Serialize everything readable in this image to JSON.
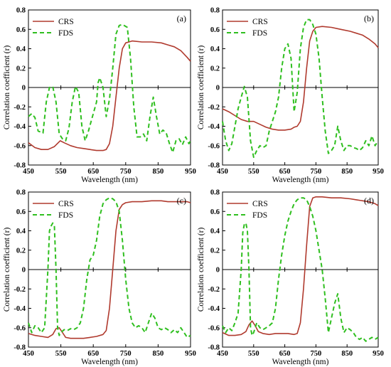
{
  "colors": {
    "crs": "#b03a2e",
    "fds": "#2fbf1f",
    "axis": "#000000"
  },
  "chart_data": [
    {
      "type": "line",
      "panel": "(a)",
      "xlabel": "Wavelength (nm)",
      "ylabel": "Correlation coefficient (r)",
      "xlim": [
        450,
        950
      ],
      "ylim": [
        -0.8,
        0.8
      ],
      "xticks": [
        "450",
        "550",
        "650",
        "750",
        "850",
        "950"
      ],
      "yticks": [
        "-0.8",
        "-0.6",
        "-0.4",
        "-0.2",
        "0",
        "0.2",
        "0.4",
        "0.6",
        "0.8"
      ],
      "legend": "top-left",
      "series": [
        {
          "name": "CRS",
          "style": "solid",
          "x": [
            450,
            470,
            490,
            510,
            530,
            548,
            560,
            580,
            600,
            620,
            640,
            660,
            680,
            690,
            700,
            710,
            720,
            730,
            740,
            750,
            770,
            800,
            830,
            860,
            880,
            900,
            920,
            940,
            950
          ],
          "y": [
            -0.57,
            -0.62,
            -0.64,
            -0.64,
            -0.61,
            -0.55,
            -0.57,
            -0.6,
            -0.62,
            -0.63,
            -0.64,
            -0.65,
            -0.65,
            -0.64,
            -0.58,
            -0.4,
            -0.1,
            0.2,
            0.4,
            0.46,
            0.48,
            0.47,
            0.47,
            0.46,
            0.44,
            0.42,
            0.38,
            0.31,
            0.27
          ]
        },
        {
          "name": "FDS",
          "style": "dashed",
          "x": [
            450,
            460,
            470,
            480,
            495,
            505,
            515,
            525,
            535,
            545,
            555,
            565,
            575,
            585,
            595,
            605,
            615,
            625,
            635,
            645,
            660,
            665,
            670,
            680,
            690,
            700,
            710,
            720,
            730,
            740,
            755,
            765,
            775,
            785,
            795,
            805,
            815,
            825,
            835,
            845,
            855,
            865,
            875,
            885,
            895,
            905,
            915,
            925,
            935,
            945,
            950
          ],
          "y": [
            -0.3,
            -0.27,
            -0.31,
            -0.45,
            -0.47,
            -0.15,
            0.0,
            0.01,
            -0.15,
            -0.48,
            -0.53,
            -0.55,
            -0.42,
            -0.15,
            0.01,
            -0.05,
            -0.4,
            -0.55,
            -0.45,
            -0.33,
            -0.15,
            0.05,
            0.1,
            0.0,
            -0.3,
            -0.12,
            0.2,
            0.55,
            0.64,
            0.65,
            0.62,
            0.3,
            -0.2,
            -0.51,
            -0.51,
            -0.48,
            -0.55,
            -0.3,
            -0.1,
            -0.3,
            -0.48,
            -0.44,
            -0.47,
            -0.58,
            -0.67,
            -0.55,
            -0.53,
            -0.59,
            -0.51,
            -0.58,
            -0.55
          ]
        }
      ]
    },
    {
      "type": "line",
      "panel": "(b)",
      "xlabel": "Wavelength (nm)",
      "ylabel": "Correlation coefficient (r)",
      "xlim": [
        450,
        950
      ],
      "ylim": [
        -0.8,
        0.8
      ],
      "xticks": [
        "450",
        "550",
        "650",
        "750",
        "850",
        "950"
      ],
      "yticks": [
        "-0.8",
        "-0.6",
        "-0.4",
        "-0.2",
        "0",
        "0.2",
        "0.4",
        "0.6",
        "0.8"
      ],
      "legend": "top-left",
      "series": [
        {
          "name": "CRS",
          "style": "solid",
          "x": [
            450,
            470,
            490,
            510,
            530,
            550,
            570,
            590,
            610,
            630,
            650,
            670,
            680,
            690,
            700,
            710,
            720,
            730,
            740,
            750,
            770,
            800,
            830,
            860,
            880,
            900,
            920,
            940,
            950
          ],
          "y": [
            -0.22,
            -0.25,
            -0.29,
            -0.33,
            -0.35,
            -0.35,
            -0.38,
            -0.41,
            -0.43,
            -0.44,
            -0.44,
            -0.43,
            -0.41,
            -0.4,
            -0.35,
            -0.15,
            0.2,
            0.48,
            0.58,
            0.62,
            0.63,
            0.62,
            0.6,
            0.58,
            0.56,
            0.54,
            0.5,
            0.45,
            0.41
          ]
        },
        {
          "name": "FDS",
          "style": "dashed",
          "x": [
            450,
            460,
            470,
            480,
            490,
            500,
            510,
            520,
            530,
            540,
            550,
            560,
            570,
            580,
            590,
            600,
            610,
            620,
            630,
            640,
            650,
            660,
            670,
            680,
            690,
            700,
            710,
            720,
            730,
            740,
            750,
            760,
            770,
            780,
            790,
            800,
            810,
            820,
            830,
            840,
            850,
            860,
            870,
            880,
            890,
            900,
            910,
            920,
            930,
            940,
            950
          ],
          "y": [
            -0.35,
            -0.55,
            -0.65,
            -0.58,
            -0.4,
            -0.22,
            -0.1,
            0.01,
            -0.1,
            -0.55,
            -0.72,
            -0.65,
            -0.6,
            -0.62,
            -0.6,
            -0.45,
            -0.35,
            -0.25,
            -0.1,
            0.2,
            0.4,
            0.45,
            0.3,
            -0.25,
            -0.05,
            0.4,
            0.62,
            0.7,
            0.7,
            0.65,
            0.55,
            0.3,
            -0.1,
            -0.45,
            -0.68,
            -0.65,
            -0.6,
            -0.4,
            -0.55,
            -0.65,
            -0.6,
            -0.6,
            -0.62,
            -0.63,
            -0.65,
            -0.62,
            -0.55,
            -0.6,
            -0.5,
            -0.6,
            -0.55
          ]
        }
      ]
    },
    {
      "type": "line",
      "panel": "(c)",
      "xlabel": "Wavelength (nm)",
      "ylabel": "Correlation coefficient (r)",
      "xlim": [
        450,
        950
      ],
      "ylim": [
        -0.8,
        0.8
      ],
      "xticks": [
        "450",
        "550",
        "650",
        "750",
        "850",
        "950"
      ],
      "yticks": [
        "-0.8",
        "-0.6",
        "-0.4",
        "-0.2",
        "0",
        "0.2",
        "0.4",
        "0.6",
        "0.8"
      ],
      "legend": "top-left",
      "series": [
        {
          "name": "CRS",
          "style": "solid",
          "x": [
            450,
            470,
            490,
            510,
            525,
            535,
            545,
            555,
            565,
            580,
            600,
            620,
            640,
            660,
            680,
            690,
            700,
            710,
            720,
            730,
            740,
            750,
            770,
            800,
            830,
            860,
            880,
            900,
            920,
            940,
            950
          ],
          "y": [
            -0.66,
            -0.68,
            -0.69,
            -0.7,
            -0.67,
            -0.61,
            -0.6,
            -0.65,
            -0.7,
            -0.71,
            -0.71,
            -0.71,
            -0.7,
            -0.69,
            -0.67,
            -0.63,
            -0.4,
            0.0,
            0.4,
            0.62,
            0.67,
            0.69,
            0.7,
            0.7,
            0.71,
            0.71,
            0.7,
            0.7,
            0.7,
            0.7,
            0.69
          ]
        },
        {
          "name": "FDS",
          "style": "dashed",
          "x": [
            450,
            460,
            470,
            480,
            490,
            500,
            510,
            515,
            520,
            525,
            530,
            535,
            540,
            545,
            550,
            560,
            570,
            580,
            590,
            600,
            610,
            620,
            630,
            640,
            650,
            660,
            670,
            680,
            690,
            700,
            710,
            720,
            730,
            740,
            750,
            760,
            770,
            780,
            790,
            800,
            810,
            820,
            830,
            840,
            850,
            860,
            870,
            880,
            890,
            900,
            910,
            920,
            930,
            940,
            950
          ],
          "y": [
            -0.55,
            -0.65,
            -0.58,
            -0.6,
            -0.65,
            -0.6,
            0.0,
            0.4,
            0.45,
            0.48,
            0.45,
            0.0,
            -0.6,
            -0.68,
            -0.65,
            -0.62,
            -0.63,
            -0.61,
            -0.62,
            -0.6,
            -0.55,
            -0.4,
            -0.1,
            0.1,
            0.15,
            0.3,
            0.55,
            0.68,
            0.72,
            0.74,
            0.73,
            0.7,
            0.6,
            0.3,
            -0.1,
            -0.4,
            -0.55,
            -0.6,
            -0.58,
            -0.6,
            -0.65,
            -0.55,
            -0.45,
            -0.5,
            -0.6,
            -0.62,
            -0.6,
            -0.62,
            -0.65,
            -0.62,
            -0.65,
            -0.6,
            -0.65,
            -0.7,
            -0.68
          ]
        }
      ]
    },
    {
      "type": "line",
      "panel": "(d)",
      "xlabel": "Wavelength (nm)",
      "ylabel": "Correlation coefficient (r)",
      "xlim": [
        450,
        950
      ],
      "ylim": [
        -0.8,
        0.8
      ],
      "xticks": [
        "450",
        "550",
        "650",
        "750",
        "850",
        "950"
      ],
      "yticks": [
        "-0.8",
        "-0.6",
        "-0.4",
        "-0.2",
        "0",
        "0.2",
        "0.4",
        "0.6",
        "0.8"
      ],
      "legend": "top-left",
      "series": [
        {
          "name": "CRS",
          "style": "solid",
          "x": [
            450,
            470,
            490,
            510,
            525,
            535,
            545,
            555,
            565,
            580,
            600,
            620,
            640,
            660,
            680,
            690,
            700,
            710,
            720,
            730,
            740,
            750,
            770,
            800,
            830,
            860,
            880,
            900,
            920,
            940,
            950
          ],
          "y": [
            -0.65,
            -0.68,
            -0.68,
            -0.67,
            -0.64,
            -0.57,
            -0.53,
            -0.58,
            -0.64,
            -0.66,
            -0.67,
            -0.66,
            -0.66,
            -0.66,
            -0.67,
            -0.66,
            -0.55,
            -0.2,
            0.25,
            0.65,
            0.74,
            0.75,
            0.75,
            0.74,
            0.74,
            0.73,
            0.72,
            0.71,
            0.7,
            0.68,
            0.66
          ]
        },
        {
          "name": "FDS",
          "style": "dashed",
          "x": [
            450,
            460,
            470,
            480,
            490,
            500,
            510,
            515,
            520,
            525,
            530,
            535,
            540,
            545,
            550,
            560,
            570,
            580,
            590,
            600,
            610,
            620,
            630,
            640,
            650,
            660,
            670,
            680,
            690,
            700,
            710,
            720,
            730,
            740,
            750,
            760,
            770,
            780,
            790,
            800,
            810,
            820,
            830,
            840,
            850,
            860,
            870,
            880,
            890,
            900,
            910,
            920,
            930,
            940,
            950
          ],
          "y": [
            -0.58,
            -0.65,
            -0.6,
            -0.63,
            -0.55,
            -0.45,
            0.0,
            0.38,
            0.47,
            0.48,
            0.4,
            0.0,
            -0.6,
            -0.68,
            -0.65,
            -0.55,
            -0.6,
            -0.62,
            -0.6,
            -0.58,
            -0.55,
            -0.4,
            -0.1,
            0.15,
            0.35,
            0.5,
            0.6,
            0.68,
            0.72,
            0.74,
            0.74,
            0.72,
            0.65,
            0.55,
            0.4,
            0.2,
            0.0,
            -0.3,
            -0.65,
            -0.5,
            -0.35,
            -0.25,
            -0.5,
            -0.65,
            -0.6,
            -0.62,
            -0.65,
            -0.7,
            -0.72,
            -0.7,
            -0.74,
            -0.72,
            -0.7,
            -0.72,
            -0.7
          ]
        }
      ]
    }
  ],
  "legend_labels": {
    "crs": "CRS",
    "fds": "FDS"
  }
}
